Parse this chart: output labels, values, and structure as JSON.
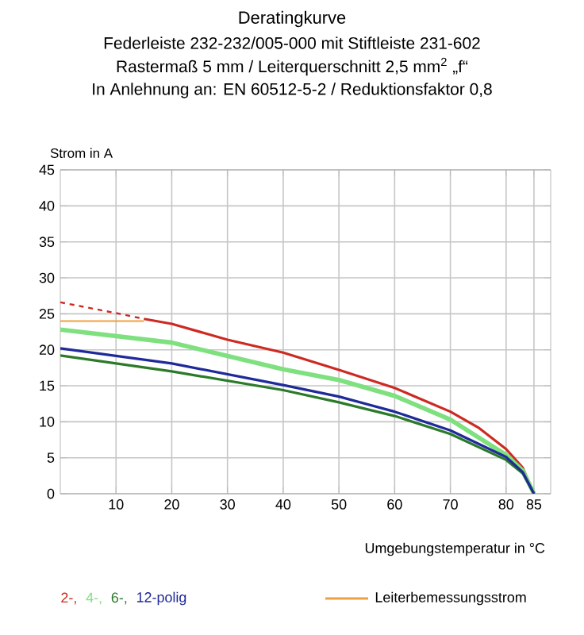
{
  "chart_data": {
    "type": "line",
    "title": "Deratingkurve",
    "subtitle": "Federleiste 232-232/005-000 mit Stiftleiste 231-602",
    "annotations": [
      "Rastermaß 5 mm / Leiterquerschnitt 2,5 mm$^{2}$ „f“",
      "In Anlehnung an: EN 60512-5-2 / Reduktionsfaktor 0,8"
    ],
    "xlabel": "Umgebungstemperatur in °C",
    "ylabel": "Strom in A",
    "xlim": [
      0,
      88
    ],
    "ylim": [
      0,
      45
    ],
    "xticks": [
      10,
      20,
      30,
      40,
      50,
      60,
      70,
      80,
      85
    ],
    "yticks": [
      0,
      5,
      10,
      15,
      20,
      25,
      30,
      35,
      40,
      45
    ],
    "grid": true,
    "legend": "bottom",
    "marker": "none",
    "series": [
      {
        "name": "2-,",
        "color": "#cc2a22",
        "x": [
          15,
          20,
          30,
          40,
          50,
          60,
          70,
          75,
          80,
          83,
          85
        ],
        "values": [
          24.3,
          23.6,
          21.4,
          19.6,
          17.2,
          14.7,
          11.4,
          9.2,
          6.2,
          3.6,
          0
        ]
      },
      {
        "name": "4-,",
        "color": "#7ee07e",
        "x": [
          0,
          20,
          40,
          50,
          60,
          70,
          80,
          83,
          85
        ],
        "values": [
          22.8,
          21,
          17.3,
          15.8,
          13.6,
          10.3,
          5.4,
          3.2,
          0
        ]
      },
      {
        "name": "6-,",
        "color": "#2a7a2a",
        "x": [
          0,
          20,
          40,
          50,
          60,
          70,
          80,
          83,
          85
        ],
        "values": [
          19.2,
          17,
          14.4,
          12.7,
          10.8,
          8.3,
          4.7,
          2.8,
          0
        ]
      },
      {
        "name": "12-polig",
        "color": "#1f2a9a",
        "x": [
          0,
          20,
          40,
          50,
          60,
          70,
          80,
          83,
          85
        ],
        "values": [
          20.2,
          18.1,
          15.1,
          13.5,
          11.4,
          8.8,
          5.1,
          3,
          0
        ]
      },
      {
        "color": "#cc2a22",
        "line_style": "dashed",
        "x": [
          0,
          10,
          15
        ],
        "values": [
          26.6,
          25.1,
          24.3
        ]
      },
      {
        "name": "Leiterbemessungsstrom",
        "color": "#f0a040",
        "x": [
          0,
          15
        ],
        "values": [
          24,
          24
        ]
      }
    ]
  }
}
